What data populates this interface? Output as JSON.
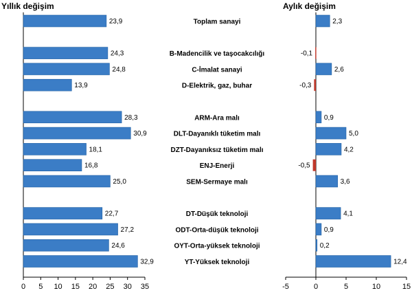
{
  "chart_data": [
    {
      "type": "bar",
      "orientation": "horizontal",
      "title": "Yıllık değişim",
      "xlim": [
        0,
        35
      ],
      "xticks": [
        "0",
        "5",
        "10",
        "15",
        "20",
        "25",
        "30",
        "35"
      ],
      "grid": false,
      "series": [
        {
          "color": "#3b7dc6",
          "values": [
            23.9,
            24.3,
            24.8,
            13.9,
            28.3,
            30.9,
            18.1,
            16.8,
            25.0,
            22.7,
            27.2,
            24.6,
            32.9
          ],
          "labels": [
            "23,9",
            "24,3",
            "24,8",
            "13,9",
            "28,3",
            "30,9",
            "18,1",
            "16,8",
            "25,0",
            "22,7",
            "27,2",
            "24,6",
            "32,9"
          ]
        }
      ]
    },
    {
      "type": "bar",
      "orientation": "horizontal",
      "title": "Aylık değişim",
      "xlim": [
        -5,
        15
      ],
      "xticks": [
        "-5",
        "0",
        "5",
        "10",
        "15"
      ],
      "grid": false,
      "negative_color": "#c0392b",
      "series": [
        {
          "color": "#3b7dc6",
          "values": [
            2.3,
            -0.1,
            2.6,
            -0.3,
            0.9,
            5.0,
            4.2,
            -0.5,
            3.6,
            4.1,
            0.9,
            0.2,
            12.4
          ],
          "labels": [
            "2,3",
            "-0,1",
            "2,6",
            "-0,3",
            "0,9",
            "5,0",
            "4,2",
            "-0,5",
            "3,6",
            "4,1",
            "0,9",
            "0,2",
            "12,4"
          ]
        }
      ]
    }
  ],
  "categories": [
    "Toplam sanayi",
    "B-Madencilik ve taşocakcılığı",
    "C-İmalat sanayi",
    "D-Elektrik, gaz, buhar",
    "ARM-Ara malı",
    "DLT-Dayanıklı tüketim malı",
    "DZT-Dayanıksız tüketim malı",
    "ENJ-Enerji",
    "SEM-Sermaye malı",
    "DT-Düşük teknoloji",
    "ODT-Orta-düşük teknoloji",
    "OYT-Orta-yüksek teknoloji",
    "YT-Yüksek teknoloji"
  ]
}
